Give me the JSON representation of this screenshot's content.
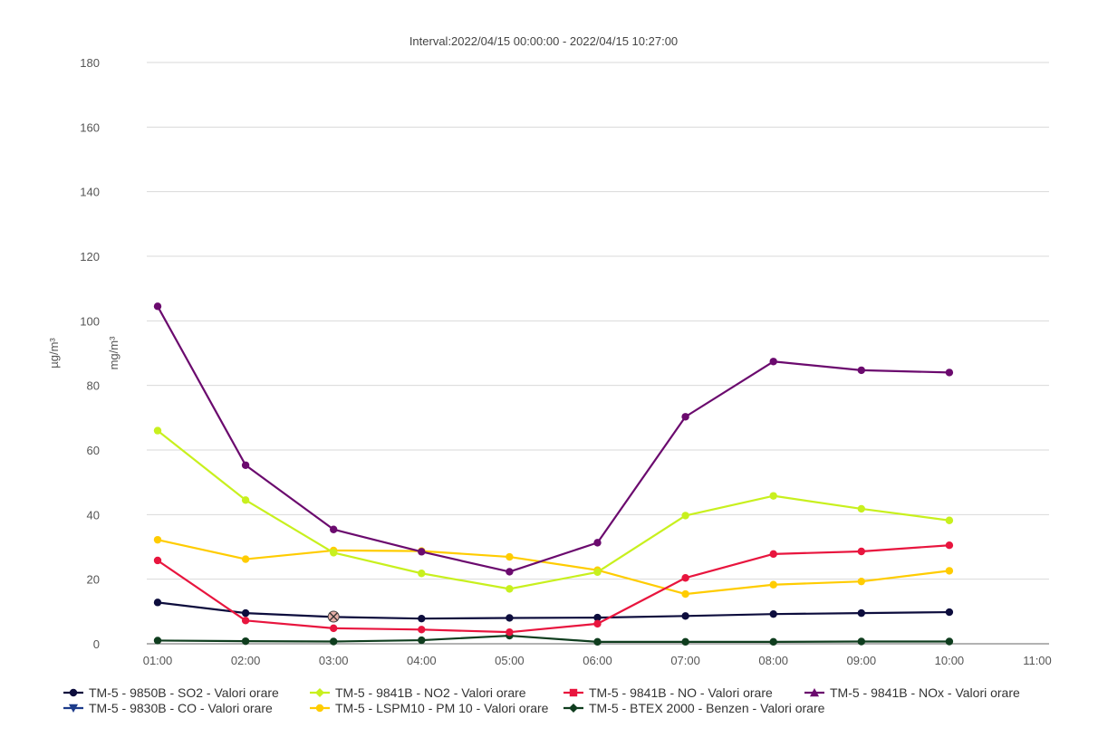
{
  "chart_data": {
    "type": "line",
    "title": "Interval:2022/04/15 00:00:00 - 2022/04/15 10:27:00",
    "ylabel_left": "µg/m³",
    "ylabel_right": "mg/m³",
    "ylim": [
      0,
      180
    ],
    "yticks": [
      0,
      20,
      40,
      60,
      80,
      100,
      120,
      140,
      160,
      180
    ],
    "grid": true,
    "legend_position": "bottom",
    "categories": [
      "01:00",
      "02:00",
      "03:00",
      "04:00",
      "05:00",
      "06:00",
      "07:00",
      "08:00",
      "09:00",
      "10:00",
      "11:00"
    ],
    "series": [
      {
        "name": "TM-5 - 9850B - SO2 - Valori orare",
        "color": "#0d0d3d",
        "marker": "circle",
        "values": [
          12.8,
          9.5,
          8.3,
          7.8,
          8.0,
          8.1,
          8.6,
          9.2,
          9.5,
          9.8,
          null
        ]
      },
      {
        "name": "TM-5 - 9841B - NO2 - Valori orare",
        "color": "#c8f01e",
        "marker": "diamond",
        "values": [
          66,
          44.5,
          28.2,
          21.8,
          17,
          22.2,
          39.7,
          45.8,
          41.8,
          38.2,
          null
        ]
      },
      {
        "name": "TM-5 - 9841B - NO - Valori orare",
        "color": "#e8153e",
        "marker": "square",
        "values": [
          25.8,
          7.2,
          4.8,
          4.4,
          3.6,
          6.2,
          20.4,
          27.8,
          28.6,
          30.5,
          null
        ]
      },
      {
        "name": "TM-5 - 9841B - NOx - Valori orare",
        "color": "#6b0a6e",
        "marker": "triangle",
        "values": [
          104.5,
          55.3,
          35.4,
          28.5,
          22.3,
          31.3,
          70.3,
          87.4,
          84.7,
          84.0,
          null
        ]
      },
      {
        "name": "TM-5 - 9830B - CO - Valori orare",
        "color": "#1c3b8a",
        "marker": "triangle-down",
        "values": [
          null,
          null,
          8.4,
          null,
          null,
          null,
          null,
          null,
          null,
          null,
          null
        ]
      },
      {
        "name": "TM-5 - LSPM10 - PM 10 - Valori orare",
        "color": "#ffcc00",
        "marker": "circle",
        "values": [
          32.2,
          26.2,
          28.9,
          28.7,
          26.9,
          22.8,
          15.4,
          18.3,
          19.3,
          22.6,
          null
        ]
      },
      {
        "name": "TM-5 - BTEX 2000 - Benzen - Valori orare",
        "color": "#0f3d1e",
        "marker": "diamond",
        "values": [
          1.0,
          0.8,
          0.7,
          1.1,
          2.5,
          0.6,
          0.6,
          0.6,
          0.7,
          0.7,
          null
        ]
      }
    ]
  }
}
